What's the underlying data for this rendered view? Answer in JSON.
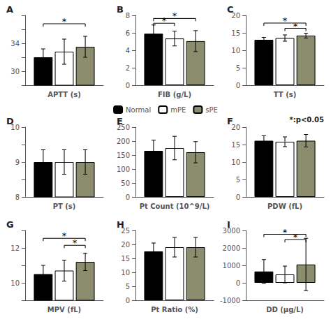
{
  "chart_data": [
    {
      "type": "bar",
      "title": "A",
      "xlabel": "APTT (s)",
      "categories": [
        null
      ],
      "series": [
        {
          "name": "Normal",
          "color": "#000000",
          "values": [
            32.0
          ],
          "errors": [
            1.2
          ]
        },
        {
          "name": "mPE",
          "color": "#ffffff",
          "values": [
            32.8
          ],
          "errors": [
            1.8
          ]
        },
        {
          "name": "sPE",
          "color": "#8c8c6e",
          "values": [
            33.5
          ],
          "errors": [
            1.5
          ]
        }
      ],
      "ylim": [
        28,
        38
      ],
      "yticks": [
        {
          "value": 28,
          "label": ""
        },
        30,
        {
          "value": 32,
          "label": ""
        },
        34,
        {
          "value": 36,
          "label": ""
        },
        {
          "value": 38,
          "label": ""
        }
      ],
      "brackets": [
        {
          "between": [
            "Normal",
            "sPE"
          ],
          "y": 36.8,
          "label": "*"
        }
      ],
      "grid": false,
      "tick_labels": "y"
    },
    {
      "type": "bar",
      "title": "B",
      "xlabel": "FIB (g/L)",
      "categories": [
        null
      ],
      "series": [
        {
          "name": "Normal",
          "color": "#000000",
          "values": [
            5.9
          ],
          "errors": [
            1.0
          ]
        },
        {
          "name": "mPE",
          "color": "#ffffff",
          "values": [
            5.35
          ],
          "errors": [
            0.85
          ]
        },
        {
          "name": "sPE",
          "color": "#8c8c6e",
          "values": [
            5.05
          ],
          "errors": [
            1.2
          ]
        }
      ],
      "ylim": [
        0,
        8
      ],
      "yticks": [
        0,
        2,
        4,
        6,
        8
      ],
      "brackets": [
        {
          "between": [
            "Normal",
            "mPE"
          ],
          "y": 7.1,
          "label": "*"
        },
        {
          "between": [
            "Normal",
            "sPE"
          ],
          "y": 7.65,
          "label": "*"
        }
      ],
      "grid": false,
      "tick_labels": "y"
    },
    {
      "type": "bar",
      "title": "C",
      "xlabel": "TT (s)",
      "categories": [
        null
      ],
      "series": [
        {
          "name": "Normal",
          "color": "#000000",
          "values": [
            13.0
          ],
          "errors": [
            0.7
          ]
        },
        {
          "name": "mPE",
          "color": "#ffffff",
          "values": [
            13.5
          ],
          "errors": [
            0.9
          ]
        },
        {
          "name": "sPE",
          "color": "#8c8c6e",
          "values": [
            14.2
          ],
          "errors": [
            0.7
          ]
        }
      ],
      "ylim": [
        0,
        20
      ],
      "yticks": [
        0,
        5,
        10,
        15,
        20
      ],
      "brackets": [
        {
          "between": [
            "Normal",
            "sPE"
          ],
          "y": 17.8,
          "label": "*"
        },
        {
          "between": [
            "mPE",
            "sPE"
          ],
          "y": 16.3,
          "label": "*"
        }
      ],
      "grid": false,
      "tick_labels": "y"
    },
    {
      "type": "bar",
      "title": "D",
      "xlabel": "PT (s)",
      "categories": [
        null
      ],
      "series": [
        {
          "name": "Normal",
          "color": "#000000",
          "values": [
            9.0
          ],
          "errors": [
            0.35
          ]
        },
        {
          "name": "mPE",
          "color": "#ffffff",
          "values": [
            9.0
          ],
          "errors": [
            0.35
          ]
        },
        {
          "name": "sPE",
          "color": "#8c8c6e",
          "values": [
            9.0
          ],
          "errors": [
            0.35
          ]
        }
      ],
      "ylim": [
        8,
        10
      ],
      "yticks": [
        8,
        {
          "value": 8.5,
          "label": ""
        },
        9,
        {
          "value": 9.5,
          "label": ""
        },
        10
      ],
      "brackets": [],
      "grid": false,
      "tick_labels": "y"
    },
    {
      "type": "bar",
      "title": "E",
      "xlabel": "Pt Count (10^9/L)",
      "categories": [
        null
      ],
      "series": [
        {
          "name": "Normal",
          "color": "#000000",
          "values": [
            165
          ],
          "errors": [
            38
          ]
        },
        {
          "name": "mPE",
          "color": "#ffffff",
          "values": [
            175
          ],
          "errors": [
            42
          ]
        },
        {
          "name": "sPE",
          "color": "#8c8c6e",
          "values": [
            160
          ],
          "errors": [
            38
          ]
        }
      ],
      "ylim": [
        0,
        250
      ],
      "yticks": [
        0,
        50,
        100,
        150,
        200,
        250
      ],
      "brackets": [],
      "grid": false,
      "tick_labels": "y",
      "legend": "top"
    },
    {
      "type": "bar",
      "title": "F",
      "xlabel": "PDW (fL)",
      "categories": [
        null
      ],
      "series": [
        {
          "name": "Normal",
          "color": "#000000",
          "values": [
            16.1
          ],
          "errors": [
            1.4
          ]
        },
        {
          "name": "mPE",
          "color": "#ffffff",
          "values": [
            15.8
          ],
          "errors": [
            1.4
          ]
        },
        {
          "name": "sPE",
          "color": "#8c8c6e",
          "values": [
            16.1
          ],
          "errors": [
            1.8
          ]
        }
      ],
      "ylim": [
        0,
        20
      ],
      "yticks": [
        0,
        5,
        10,
        15,
        20
      ],
      "brackets": [],
      "annotation": "*:p<0.05",
      "grid": false,
      "tick_labels": "y"
    },
    {
      "type": "bar",
      "title": "G",
      "xlabel": "MPV (fL)",
      "categories": [
        null
      ],
      "series": [
        {
          "name": "Normal",
          "color": "#000000",
          "values": [
            10.5
          ],
          "errors": [
            0.5
          ]
        },
        {
          "name": "mPE",
          "color": "#ffffff",
          "values": [
            10.7
          ],
          "errors": [
            0.6
          ]
        },
        {
          "name": "sPE",
          "color": "#8c8c6e",
          "values": [
            11.2
          ],
          "errors": [
            0.5
          ]
        }
      ],
      "ylim": [
        9,
        13
      ],
      "yticks": [
        {
          "value": 9,
          "label": ""
        },
        10,
        {
          "value": 11,
          "label": ""
        },
        12,
        {
          "value": 13,
          "label": ""
        }
      ],
      "brackets": [
        {
          "between": [
            "Normal",
            "sPE"
          ],
          "y": 12.55,
          "label": "*"
        },
        {
          "between": [
            "mPE",
            "sPE"
          ],
          "y": 12.15,
          "label": "*"
        }
      ],
      "grid": false,
      "tick_labels": "y"
    },
    {
      "type": "bar",
      "title": "H",
      "xlabel": "Pt Ratio (%)",
      "categories": [
        null
      ],
      "series": [
        {
          "name": "Normal",
          "color": "#000000",
          "values": [
            17.5
          ],
          "errors": [
            3.0
          ]
        },
        {
          "name": "mPE",
          "color": "#ffffff",
          "values": [
            19.0
          ],
          "errors": [
            3.5
          ]
        },
        {
          "name": "sPE",
          "color": "#8c8c6e",
          "values": [
            19.0
          ],
          "errors": [
            3.5
          ]
        }
      ],
      "ylim": [
        0,
        25
      ],
      "yticks": [
        0,
        5,
        10,
        15,
        20,
        25
      ],
      "brackets": [],
      "grid": false,
      "tick_labels": "y"
    },
    {
      "type": "bar",
      "title": "I",
      "xlabel": "DD (μg/L)",
      "categories": [
        null
      ],
      "series": [
        {
          "name": "Normal",
          "color": "#000000",
          "values": [
            650
          ],
          "errors": [
            680
          ]
        },
        {
          "name": "mPE",
          "color": "#ffffff",
          "values": [
            480
          ],
          "errors": [
            480
          ]
        },
        {
          "name": "sPE",
          "color": "#8c8c6e",
          "values": [
            1050
          ],
          "errors": [
            1500
          ]
        }
      ],
      "ylim": [
        -1000,
        3000
      ],
      "yticks": [
        -1000,
        0,
        1000,
        2000,
        3000
      ],
      "brackets": [
        {
          "between": [
            "Normal",
            "sPE"
          ],
          "y": 2780,
          "label": "*"
        },
        {
          "between": [
            "mPE",
            "sPE"
          ],
          "y": 2480,
          "label": "*"
        }
      ],
      "grid": false,
      "tick_labels": "y"
    }
  ]
}
